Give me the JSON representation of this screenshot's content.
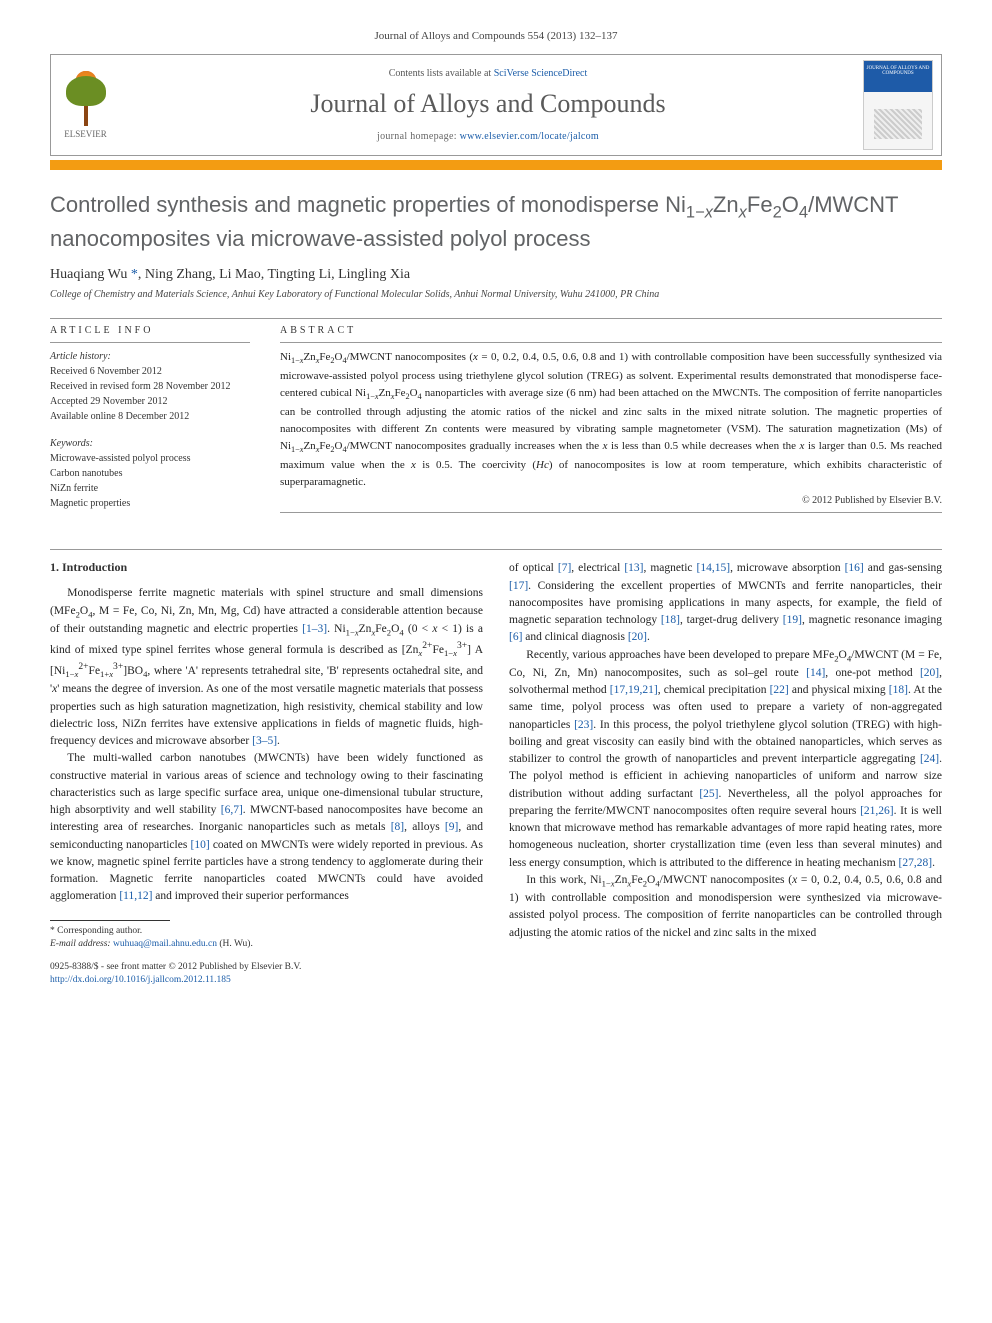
{
  "journal_ref": "Journal of Alloys and Compounds 554 (2013) 132–137",
  "header": {
    "contents_prefix": "Contents lists available at ",
    "contents_link": "SciVerse ScienceDirect",
    "journal_title": "Journal of Alloys and Compounds",
    "homepage_prefix": "journal homepage: ",
    "homepage_url": "www.elsevier.com/locate/jalcom",
    "elsevier_label": "ELSEVIER",
    "cover_text": "JOURNAL OF ALLOYS AND COMPOUNDS"
  },
  "title_html": "Controlled synthesis and magnetic properties of monodisperse Ni<sub>1−<i>x</i></sub>Zn<sub><i>x</i></sub>Fe<sub>2</sub>O<sub>4</sub>/MWCNT nanocomposites via microwave-assisted polyol process",
  "authors_html": "Huaqiang Wu <a href=\"#\">*</a>, Ning Zhang, Li Mao, Tingting Li, Lingling Xia",
  "affiliation": "College of Chemistry and Materials Science, Anhui Key Laboratory of Functional Molecular Solids, Anhui Normal University, Wuhu 241000, PR China",
  "article_info": {
    "label": "ARTICLE INFO",
    "history_label": "Article history:",
    "received": "Received 6 November 2012",
    "revised": "Received in revised form 28 November 2012",
    "accepted": "Accepted 29 November 2012",
    "online": "Available online 8 December 2012",
    "keywords_label": "Keywords:",
    "keywords": [
      "Microwave-assisted polyol process",
      "Carbon nanotubes",
      "NiZn ferrite",
      "Magnetic properties"
    ]
  },
  "abstract": {
    "label": "ABSTRACT",
    "text_html": "Ni<sub>1−<i>x</i></sub>Zn<sub><i>x</i></sub>Fe<sub>2</sub>O<sub>4</sub>/MWCNT nanocomposites (<i>x</i> = 0, 0.2, 0.4, 0.5, 0.6, 0.8 and 1) with controllable composition have been successfully synthesized via microwave-assisted polyol process using triethylene glycol solution (TREG) as solvent. Experimental results demonstrated that monodisperse face-centered cubical Ni<sub>1−<i>x</i></sub>Zn<sub><i>x</i></sub>Fe<sub>2</sub>O<sub>4</sub> nanoparticles with average size (6 nm) had been attached on the MWCNTs. The composition of ferrite nanoparticles can be controlled through adjusting the atomic ratios of the nickel and zinc salts in the mixed nitrate solution. The magnetic properties of nanocomposites with different Zn contents were measured by vibrating sample magnetometer (VSM). The saturation magnetization (Ms) of Ni<sub>1−<i>x</i></sub>Zn<sub><i>x</i></sub>Fe<sub>2</sub>O<sub>4</sub>/MWCNT nanocomposites gradually increases when the <i>x</i> is less than 0.5 while decreases when the <i>x</i> is larger than 0.5. Ms reached maximum value when the <i>x</i> is 0.5. The coercivity (<i>Hc</i>) of nanocomposites is low at room temperature, which exhibits characteristic of superparamagnetic.",
    "copyright": "© 2012 Published by Elsevier B.V."
  },
  "body": {
    "section_heading": "1. Introduction",
    "col1_html": "<p>Monodisperse ferrite magnetic materials with spinel structure and small dimensions (MFe<sub>2</sub>O<sub>4</sub>, M = Fe, Co, Ni, Zn, Mn, Mg, Cd) have attracted a considerable attention because of their outstanding magnetic and electric properties <a href=\"#\">[1–3]</a>. Ni<sub>1−<i>x</i></sub>Zn<sub><i>x</i></sub>Fe<sub>2</sub>O<sub>4</sub> (0 &lt; <i>x</i> &lt; 1) is a kind of mixed type spinel ferrites whose general formula is described as [Zn<sub><i>x</i></sub><sup>2+</sup>Fe<sub>1−<i>x</i></sub><sup>3+</sup>] A [Ni<sub>1−<i>x</i></sub><sup>2+</sup>Fe<sub>1+<i>x</i></sub><sup>3+</sup>]BO<sub>4</sub>, where 'A' represents tetrahedral site, 'B' represents octahedral site, and '<i>x</i>' means the degree of inversion. As one of the most versatile magnetic materials that possess properties such as high saturation magnetization, high resistivity, chemical stability and low dielectric loss, NiZn ferrites have extensive applications in fields of magnetic fluids, high-frequency devices and microwave absorber <a href=\"#\">[3–5]</a>.</p><p>The multi-walled carbon nanotubes (MWCNTs) have been widely functioned as constructive material in various areas of science and technology owing to their fascinating characteristics such as large specific surface area, unique one-dimensional tubular structure, high absorptivity and well stability <a href=\"#\">[6,7]</a>. MWCNT-based nanocomposites have become an interesting area of researches. Inorganic nanoparticles such as metals <a href=\"#\">[8]</a>, alloys <a href=\"#\">[9]</a>, and semiconducting nanoparticles <a href=\"#\">[10]</a> coated on MWCNTs were widely reported in previous. As we know, magnetic spinel ferrite particles have a strong tendency to agglomerate during their formation. Magnetic ferrite nanoparticles coated MWCNTs could have avoided agglomeration <a href=\"#\">[11,12]</a> and improved their superior performances</p>",
    "col2_html": "<p style=\"text-indent:0\">of optical <a href=\"#\">[7]</a>, electrical <a href=\"#\">[13]</a>, magnetic <a href=\"#\">[14,15]</a>, microwave absorption <a href=\"#\">[16]</a> and gas-sensing <a href=\"#\">[17]</a>. Considering the excellent properties of MWCNTs and ferrite nanoparticles, their nanocomposites have promising applications in many aspects, for example, the field of magnetic separation technology <a href=\"#\">[18]</a>, target-drug delivery <a href=\"#\">[19]</a>, magnetic resonance imaging <a href=\"#\">[6]</a> and clinical diagnosis <a href=\"#\">[20]</a>.</p><p>Recently, various approaches have been developed to prepare MFe<sub>2</sub>O<sub>4</sub>/MWCNT (M = Fe, Co, Ni, Zn, Mn) nanocomposites, such as sol–gel route <a href=\"#\">[14]</a>, one-pot method <a href=\"#\">[20]</a>, solvothermal method <a href=\"#\">[17,19,21]</a>, chemical precipitation <a href=\"#\">[22]</a> and physical mixing <a href=\"#\">[18]</a>. At the same time, polyol process was often used to prepare a variety of non-aggregated nanoparticles <a href=\"#\">[23]</a>. In this process, the polyol triethylene glycol solution (TREG) with high-boiling and great viscosity can easily bind with the obtained nanoparticles, which serves as stabilizer to control the growth of nanoparticles and prevent interparticle aggregating <a href=\"#\">[24]</a>. The polyol method is efficient in achieving nanoparticles of uniform and narrow size distribution without adding surfactant <a href=\"#\">[25]</a>. Nevertheless, all the polyol approaches for preparing the ferrite/MWCNT nanocomposites often require several hours <a href=\"#\">[21,26]</a>. It is well known that microwave method has remarkable advantages of more rapid heating rates, more homogeneous nucleation, shorter crystallization time (even less than several minutes) and less energy consumption, which is attributed to the difference in heating mechanism <a href=\"#\">[27,28]</a>.</p><p>In this work, Ni<sub>1−<i>x</i></sub>Zn<sub><i>x</i></sub>Fe<sub>2</sub>O<sub>4</sub>/MWCNT nanocomposites (<i>x</i> = 0, 0.2, 0.4, 0.5, 0.6, 0.8 and 1) with controllable composition and monodispersion were synthesized via microwave-assisted polyol process. The composition of ferrite nanoparticles can be controlled through adjusting the atomic ratios of the nickel and zinc salts in the mixed</p>"
  },
  "footnote": {
    "corresponding": "* Corresponding author.",
    "email_label": "E-mail address:",
    "email": "wuhuaq@mail.ahnu.edu.cn",
    "email_suffix": "(H. Wu)."
  },
  "bottom": {
    "issn": "0925-8388/$ - see front matter © 2012 Published by Elsevier B.V.",
    "doi": "http://dx.doi.org/10.1016/j.jallcom.2012.11.185"
  },
  "colors": {
    "accent_orange": "#f39c12",
    "link_blue": "#1a5ca8",
    "title_gray": "#616365",
    "text": "#222222"
  }
}
